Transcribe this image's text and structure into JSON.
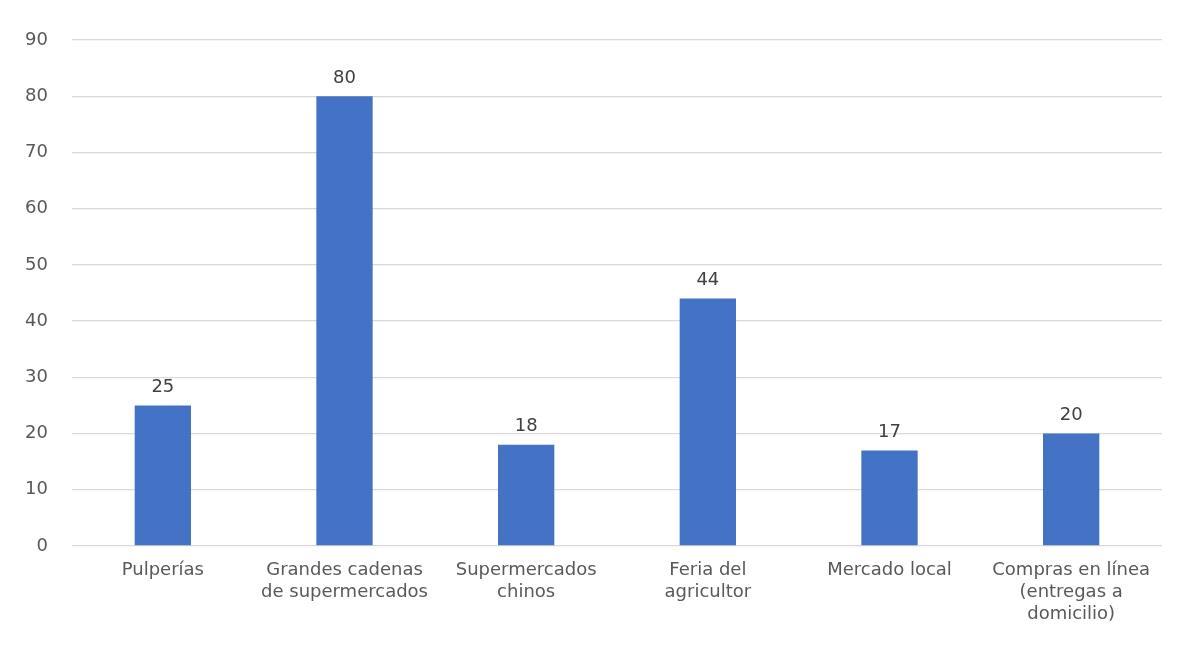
{
  "chart_data": {
    "type": "bar",
    "categories": [
      "Pulperías",
      "Grandes cadenas de supermercados",
      "Supermercados chinos",
      "Feria del agricultor",
      "Mercado local",
      "Compras en línea (entregas a domicilio)"
    ],
    "values": [
      25,
      80,
      18,
      44,
      17,
      20
    ],
    "color": "#4472c4",
    "ylim": [
      0,
      90
    ],
    "yticks": [
      0,
      10,
      20,
      30,
      40,
      50,
      60,
      70,
      80,
      90
    ],
    "grid": "y",
    "data_labels": true
  }
}
